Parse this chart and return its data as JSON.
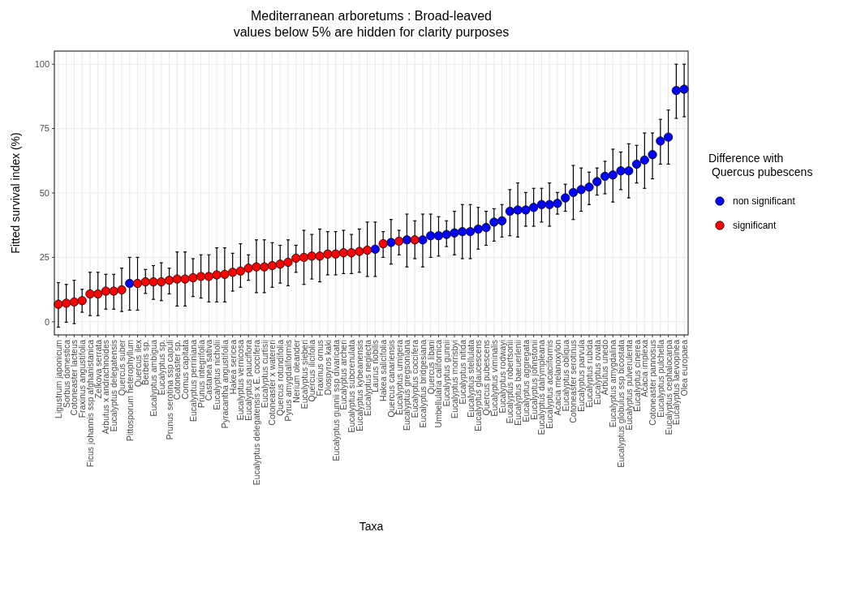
{
  "chart_data": {
    "type": "scatter",
    "title": "Mediterranean arboretums : Broad-leaved",
    "subtitle": "values below 5% are hidden for clarity purposes",
    "xlabel": "Taxa",
    "ylabel": "Fitted survival index (%)",
    "legend_title": "Difference with\n Quercus pubescens",
    "legend": "right",
    "grid": true,
    "marker": "circle",
    "ylim": [
      -5.1,
      105.1
    ],
    "yticks": [
      0,
      25,
      50,
      75,
      100
    ],
    "categories": [
      "Ligustrum japonicum",
      "Sorbus domestica",
      "Cotoneaster lacteus",
      "Fraxinus angustifolia",
      "Ficus johannis ssp afghanistanica",
      "Zelkova serrata",
      "Arbutus x andrachnoides",
      "Eucalyptus delegatensis",
      "Quercus suber",
      "Pittosporum heterophyllum",
      "Quercus ilex",
      "Berberis sp.",
      "Eucalyptus ambigua",
      "Eucalyptus sp.",
      "Prunus serotina ssp capuli",
      "Cotoneaster sp.",
      "Cornus capitata",
      "Eucalyptus perriniana",
      "Prunus integrifolia",
      "Castanea sativa",
      "Eucalyptus nicholii",
      "Pyracantha angustifolia",
      "Hakea sericea",
      "Eucalyptus vernicosa",
      "Eucalyptus pauciflora",
      "Eucalyptus delegatensis x E. coccifera",
      "Eucalyptus curtisii",
      "Cotoneaster x watereri",
      "Quercus rotundifolia",
      "Pyrus amygdaliformis",
      "Nerium oleander",
      "Eucalyptus sieberi",
      "Quercus ilicifolia",
      "Fraxinus ornus",
      "Diospyros kaki",
      "Eucalyptus gunnii ssp divaricata",
      "Eucalyptus archeri",
      "Eucalyptus subcrenulata",
      "Eucalyptus kybeanensis",
      "Eucalyptus neglecta",
      "Laurus nobilis",
      "Hakea salicifolia",
      "Quercus canariensis",
      "Eucalyptus urnigera",
      "Eucalyptus gregsoniana",
      "Eucalyptus coccifera",
      "Eucalyptus bridgesiana",
      "Quercus libani",
      "Umbellularia californica",
      "Eucalyptus gunnii",
      "Eucalyptus morrisbyi",
      "Eucalyptus nitida",
      "Eucalyptus stellulata",
      "Eucalyptus glaucescens",
      "Quercus pubescens",
      "Eucalyptus viminalis",
      "Eucalyptus rodwayi",
      "Eucalyptus robertsonii",
      "Eucalyptus baeuerlenii",
      "Eucalyptus aggregata",
      "Eucalyptus johnstonii",
      "Eucalyptus dalrympleana",
      "Eucalyptus acaciiformis",
      "Acacia melanoxylon",
      "Eucalyptus obliqua",
      "Cotoneaster serotinus",
      "Eucalyptus parvula",
      "Eucalyptus rubida",
      "Eucalyptus ovata",
      "Arbutus unedo",
      "Eucalyptus amygdalina",
      "Eucalyptus globulus ssp bicostata",
      "Eucalyptus pulverulenta",
      "Eucalyptus cinerea",
      "Acacia implexa",
      "Cotoneaster pannosus",
      "Eucalyptus pulchella",
      "Eucalyptus cephalocarpa",
      "Eucalyptus laevopinea",
      "Olea europaea"
    ],
    "series": [
      {
        "name": "non significant",
        "color": "#0000ff",
        "values": [
          null,
          null,
          null,
          null,
          null,
          null,
          null,
          null,
          null,
          14.9,
          null,
          null,
          null,
          null,
          null,
          null,
          null,
          null,
          null,
          null,
          null,
          null,
          null,
          null,
          null,
          null,
          null,
          null,
          null,
          null,
          null,
          null,
          null,
          null,
          null,
          null,
          null,
          null,
          null,
          null,
          28.2,
          null,
          30.8,
          null,
          31.8,
          null,
          31.8,
          33.4,
          33.4,
          33.9,
          34.5,
          35,
          35,
          36,
          36.6,
          38.7,
          39.2,
          42.9,
          43.4,
          43.4,
          44.4,
          45.5,
          45.5,
          46,
          48.1,
          50.2,
          51.3,
          52.3,
          54.4,
          56.5,
          57,
          58.6,
          58.6,
          61.2,
          62.8,
          64.9,
          70.2,
          71.7,
          89.8,
          90.3
        ],
        "errors": [
          null,
          null,
          null,
          null,
          null,
          null,
          null,
          null,
          null,
          [
            4.5,
            25
          ],
          null,
          null,
          null,
          null,
          null,
          null,
          null,
          null,
          null,
          null,
          null,
          null,
          null,
          null,
          null,
          null,
          null,
          null,
          null,
          null,
          null,
          null,
          null,
          null,
          null,
          null,
          null,
          null,
          null,
          null,
          [
            17.6,
            38.7
          ],
          null,
          [
            22.4,
            39.7
          ],
          null,
          [
            21.3,
            41.8
          ],
          null,
          [
            21.3,
            41.8
          ],
          [
            25,
            41.8
          ],
          [
            25.5,
            40.8
          ],
          [
            29.2,
            39.2
          ],
          [
            26,
            42.9
          ],
          [
            24.5,
            45.5
          ],
          [
            24.5,
            45.5
          ],
          [
            28.2,
            44.4
          ],
          [
            29.7,
            42.9
          ],
          [
            31.3,
            43.9
          ],
          [
            32.9,
            45.5
          ],
          [
            33.4,
            51.3
          ],
          [
            32.9,
            53.9
          ],
          [
            37.1,
            50.2
          ],
          [
            37.1,
            51.8
          ],
          [
            38.7,
            51.8
          ],
          [
            37.1,
            53.9
          ],
          [
            41.8,
            50.2
          ],
          [
            42.9,
            53.4
          ],
          [
            39.7,
            60.7
          ],
          [
            42.9,
            59.7
          ],
          [
            45.5,
            58.1
          ],
          [
            49.2,
            59.7
          ],
          [
            49.7,
            62.3
          ],
          [
            46.5,
            67
          ],
          [
            51.3,
            65.9
          ],
          [
            48.1,
            69.1
          ],
          [
            53.9,
            68.5
          ],
          [
            51.8,
            73.3
          ],
          [
            55.5,
            73.3
          ],
          [
            61.2,
            78.6
          ],
          [
            61.2,
            82.2
          ],
          [
            79,
            100
          ],
          [
            79.6,
            100
          ]
        ]
      },
      {
        "name": "significant",
        "color": "#ff0000",
        "values": [
          6.8,
          7.2,
          7.7,
          8.2,
          10.8,
          10.8,
          11.9,
          11.9,
          12.4,
          null,
          14.9,
          15.5,
          15.5,
          15.5,
          16.1,
          16.6,
          16.6,
          17.1,
          17.6,
          17.6,
          18.2,
          18.4,
          19.2,
          19.7,
          20.8,
          21.3,
          21.3,
          21.8,
          22.4,
          23.1,
          24.7,
          25,
          25.5,
          25.5,
          26.3,
          26.3,
          26.8,
          26.8,
          27.3,
          27.8,
          null,
          30.3,
          null,
          31.3,
          null,
          31.8,
          null,
          null,
          null,
          null,
          null,
          null,
          null,
          null,
          null,
          null,
          null,
          null,
          null,
          null,
          null,
          null,
          null,
          null,
          null,
          null,
          null,
          null,
          null,
          null,
          null,
          null,
          null,
          null,
          null,
          null,
          null,
          null,
          null,
          null
        ],
        "errors": [
          [
            -2.1,
            15.2
          ],
          [
            -0.2,
            14.5
          ],
          [
            -0.7,
            16.1
          ],
          [
            3.7,
            12.6
          ],
          [
            2.4,
            19.2
          ],
          [
            2.4,
            19.2
          ],
          [
            4.9,
            18.4
          ],
          [
            4.9,
            18.4
          ],
          [
            4,
            20.8
          ],
          null,
          [
            4.5,
            25
          ],
          [
            11,
            20.3
          ],
          [
            8.7,
            21.8
          ],
          [
            8.2,
            22.9
          ],
          [
            10.8,
            20.8
          ],
          [
            6.1,
            27.1
          ],
          [
            6.1,
            27.1
          ],
          [
            9.8,
            24.5
          ],
          [
            9.2,
            26
          ],
          [
            7.7,
            26
          ],
          [
            7.7,
            28.7
          ],
          [
            7.7,
            28.7
          ],
          [
            11.9,
            26.6
          ],
          [
            13.4,
            30.3
          ],
          [
            16.1,
            26
          ],
          [
            11.3,
            31.8
          ],
          [
            11.3,
            31.8
          ],
          [
            13.4,
            30.7
          ],
          [
            15,
            29.7
          ],
          [
            14,
            31.8
          ],
          [
            19.2,
            29.7
          ],
          [
            14.5,
            35.5
          ],
          [
            16.6,
            33.9
          ],
          [
            15.5,
            36
          ],
          [
            18.2,
            35
          ],
          [
            18.2,
            35
          ],
          [
            18.7,
            35.5
          ],
          [
            18.7,
            33.9
          ],
          [
            19.2,
            36
          ],
          [
            17.6,
            38.7
          ],
          null,
          [
            25,
            35
          ],
          null,
          [
            26,
            35.5
          ],
          null,
          [
            24.5,
            39.2
          ],
          null,
          null,
          null,
          null,
          null,
          null,
          null,
          null,
          null,
          null,
          null,
          null,
          null,
          null,
          null,
          null,
          null,
          null,
          null,
          null,
          null,
          null,
          null,
          null,
          null,
          null,
          null,
          null,
          null,
          null,
          null,
          null,
          null,
          null
        ]
      }
    ]
  }
}
